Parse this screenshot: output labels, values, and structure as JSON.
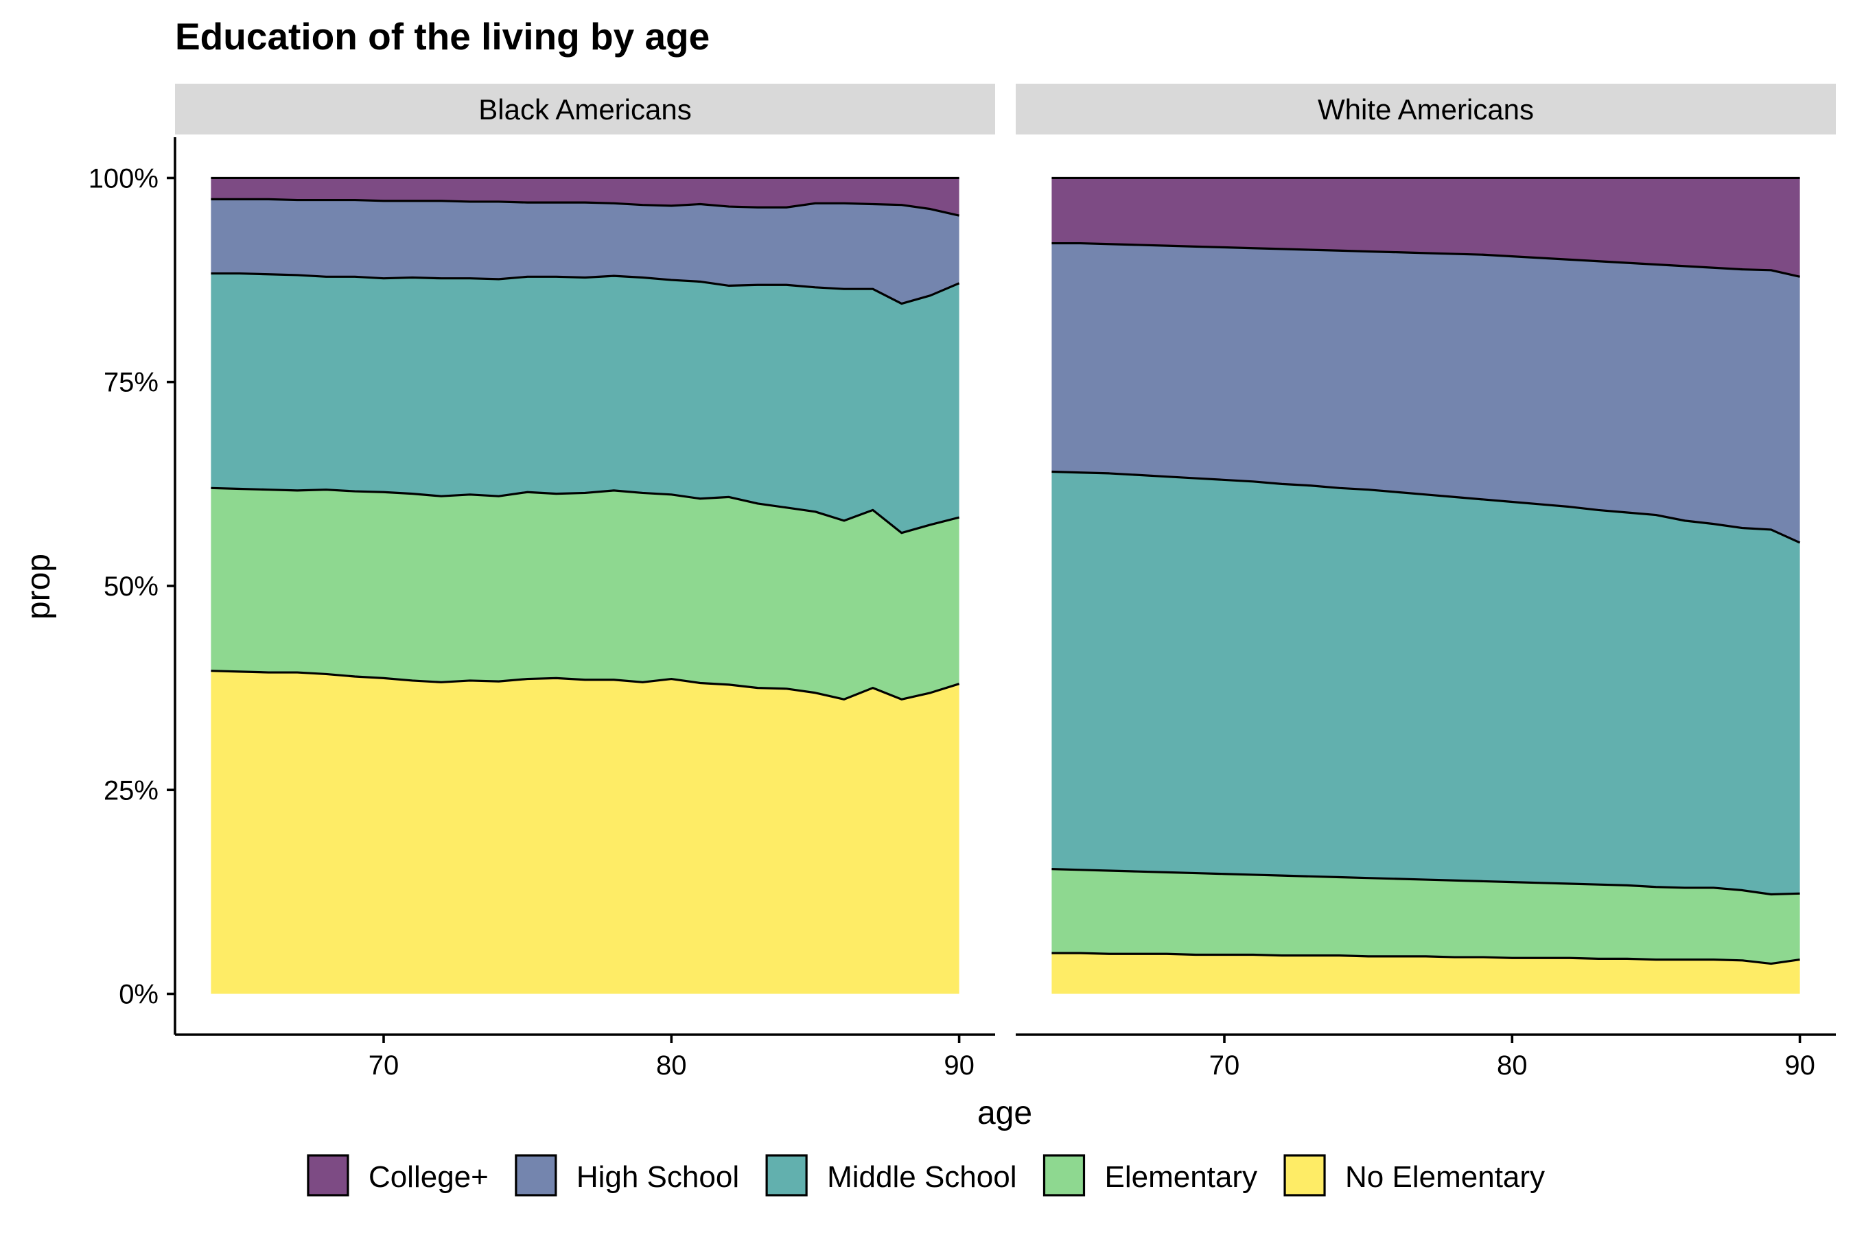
{
  "chart_data": {
    "type": "area",
    "stacked": "percent",
    "title": "Education of the living by age",
    "xlabel": "age",
    "ylabel": "prop",
    "xlim": [
      62.75,
      91.25
    ],
    "ylim": [
      -0.05,
      1.05
    ],
    "x_ticks": [
      70,
      80,
      90
    ],
    "y_ticks": [
      0,
      0.25,
      0.5,
      0.75,
      1.0
    ],
    "y_tick_labels": [
      "0%",
      "25%",
      "50%",
      "75%",
      "100%"
    ],
    "legend_position": "bottom",
    "grid": false,
    "legend": [
      {
        "name": "College+",
        "color": "#7D4B84"
      },
      {
        "name": "High School",
        "color": "#7485AE"
      },
      {
        "name": "Middle School",
        "color": "#62B0AE"
      },
      {
        "name": "Elementary",
        "color": "#8ED890"
      },
      {
        "name": "No Elementary",
        "color": "#FEEC66"
      }
    ],
    "panels": [
      {
        "label": "Black Americans",
        "x": [
          64,
          65,
          66,
          67,
          68,
          69,
          70,
          71,
          72,
          73,
          74,
          75,
          76,
          77,
          78,
          79,
          80,
          81,
          82,
          83,
          84,
          85,
          86,
          87,
          88,
          89,
          90
        ],
        "boundaries": {
          "No Elementary": [
            0.396,
            0.395,
            0.394,
            0.394,
            0.392,
            0.389,
            0.387,
            0.384,
            0.382,
            0.384,
            0.383,
            0.386,
            0.387,
            0.385,
            0.385,
            0.382,
            0.386,
            0.381,
            0.379,
            0.375,
            0.374,
            0.369,
            0.361,
            0.375,
            0.361,
            0.369,
            0.38
          ],
          "Elementary": [
            0.62,
            0.619,
            0.618,
            0.617,
            0.618,
            0.616,
            0.615,
            0.613,
            0.61,
            0.612,
            0.61,
            0.615,
            0.613,
            0.614,
            0.617,
            0.614,
            0.612,
            0.607,
            0.609,
            0.601,
            0.596,
            0.591,
            0.58,
            0.593,
            0.565,
            0.575,
            0.584
          ],
          "Middle School": [
            0.883,
            0.883,
            0.882,
            0.881,
            0.879,
            0.879,
            0.877,
            0.878,
            0.877,
            0.877,
            0.876,
            0.879,
            0.879,
            0.878,
            0.88,
            0.878,
            0.875,
            0.873,
            0.868,
            0.869,
            0.869,
            0.866,
            0.864,
            0.864,
            0.846,
            0.856,
            0.871
          ],
          "High School": [
            0.974,
            0.974,
            0.974,
            0.973,
            0.973,
            0.973,
            0.972,
            0.972,
            0.972,
            0.971,
            0.971,
            0.97,
            0.97,
            0.97,
            0.969,
            0.967,
            0.966,
            0.968,
            0.965,
            0.964,
            0.964,
            0.969,
            0.969,
            0.968,
            0.967,
            0.962,
            0.954
          ],
          "College+": [
            1,
            1,
            1,
            1,
            1,
            1,
            1,
            1,
            1,
            1,
            1,
            1,
            1,
            1,
            1,
            1,
            1,
            1,
            1,
            1,
            1,
            1,
            1,
            1,
            1,
            1,
            1
          ]
        }
      },
      {
        "label": "White Americans",
        "x": [
          64,
          65,
          66,
          67,
          68,
          69,
          70,
          71,
          72,
          73,
          74,
          75,
          76,
          77,
          78,
          79,
          80,
          81,
          82,
          83,
          84,
          85,
          86,
          87,
          88,
          89,
          90
        ],
        "boundaries": {
          "No Elementary": [
            0.05,
            0.05,
            0.049,
            0.049,
            0.049,
            0.048,
            0.048,
            0.048,
            0.047,
            0.047,
            0.047,
            0.046,
            0.046,
            0.046,
            0.045,
            0.045,
            0.044,
            0.044,
            0.044,
            0.043,
            0.043,
            0.042,
            0.042,
            0.042,
            0.041,
            0.037,
            0.042
          ],
          "Elementary": [
            0.153,
            0.152,
            0.151,
            0.15,
            0.149,
            0.148,
            0.147,
            0.146,
            0.145,
            0.144,
            0.143,
            0.142,
            0.141,
            0.14,
            0.139,
            0.138,
            0.137,
            0.136,
            0.135,
            0.134,
            0.133,
            0.131,
            0.13,
            0.13,
            0.127,
            0.122,
            0.123
          ],
          "Middle School": [
            0.64,
            0.639,
            0.638,
            0.636,
            0.634,
            0.632,
            0.63,
            0.628,
            0.625,
            0.623,
            0.62,
            0.618,
            0.615,
            0.612,
            0.609,
            0.606,
            0.603,
            0.6,
            0.597,
            0.593,
            0.59,
            0.587,
            0.58,
            0.576,
            0.571,
            0.569,
            0.553
          ],
          "High School": [
            0.92,
            0.92,
            0.919,
            0.918,
            0.917,
            0.916,
            0.915,
            0.914,
            0.913,
            0.912,
            0.911,
            0.91,
            0.909,
            0.908,
            0.907,
            0.906,
            0.904,
            0.902,
            0.9,
            0.898,
            0.896,
            0.894,
            0.892,
            0.89,
            0.888,
            0.887,
            0.879
          ],
          "College+": [
            1,
            1,
            1,
            1,
            1,
            1,
            1,
            1,
            1,
            1,
            1,
            1,
            1,
            1,
            1,
            1,
            1,
            1,
            1,
            1,
            1,
            1,
            1,
            1,
            1,
            1,
            1
          ]
        }
      }
    ]
  }
}
